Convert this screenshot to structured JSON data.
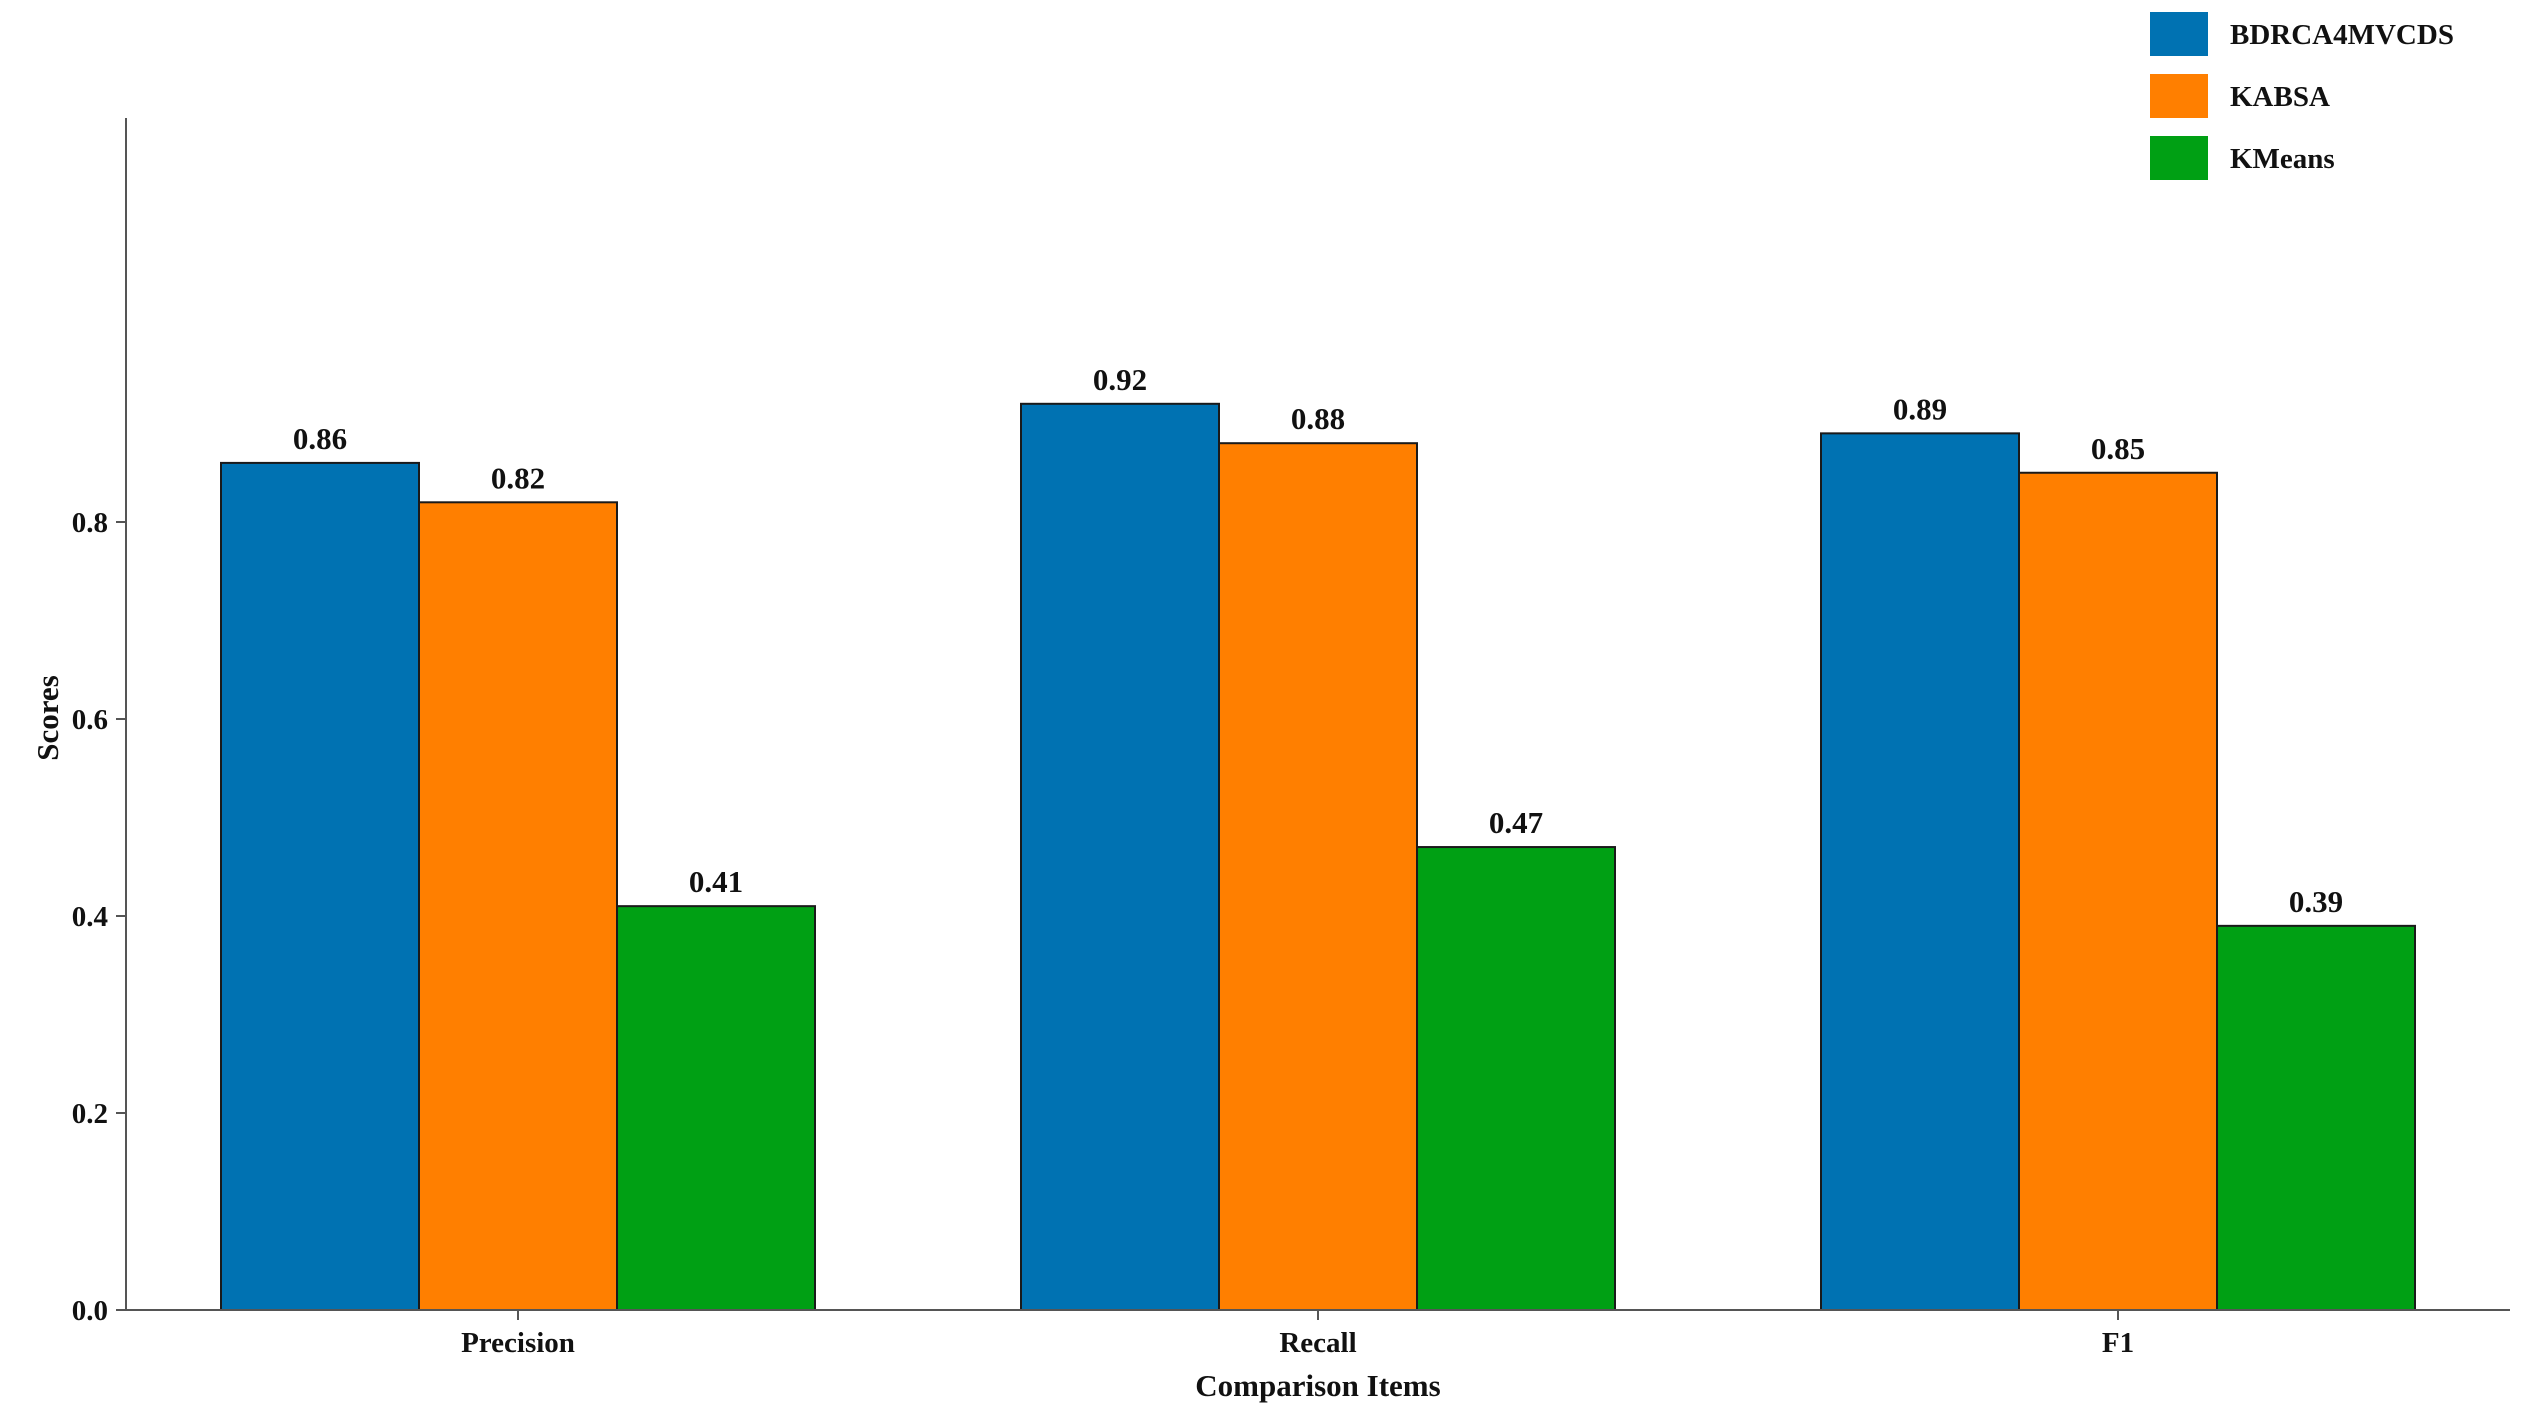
{
  "chart_data": {
    "type": "bar",
    "title": "",
    "xlabel": "Comparison Items",
    "ylabel": "Scores",
    "categories": [
      "Precision",
      "Recall",
      "F1"
    ],
    "series": [
      {
        "name": "BDRCA4MVCDS",
        "color": "#0072b2",
        "values": [
          0.86,
          0.92,
          0.89
        ],
        "labels": [
          "0.86",
          "0.92",
          "0.89"
        ]
      },
      {
        "name": "KABSA",
        "color": "#ff7f00",
        "values": [
          0.82,
          0.88,
          0.85
        ],
        "labels": [
          "0.82",
          "0.88",
          "0.85"
        ]
      },
      {
        "name": "KMeans",
        "color": "#00a014",
        "values": [
          0.41,
          0.47,
          0.39
        ],
        "labels": [
          "0.41",
          "0.47",
          "0.39"
        ]
      }
    ],
    "ylim": [
      0,
      0.969
    ],
    "yticks": [
      0.0,
      0.2,
      0.4,
      0.6,
      0.8
    ],
    "ytick_labels": [
      "0.0",
      "0.2",
      "0.4",
      "0.6",
      "0.8"
    ],
    "grid": false,
    "legend_position": "top-right"
  }
}
